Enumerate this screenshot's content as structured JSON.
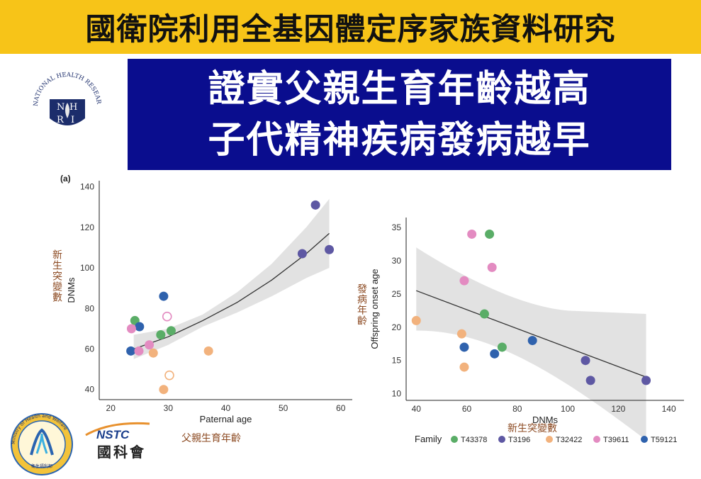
{
  "banner": {
    "title": "國衛院利用全基因體定序家族資料研究"
  },
  "headline": {
    "line1": "證實父親生育年齡越高",
    "line2": "子代精神疾病發病越早"
  },
  "logos": {
    "nhri_text": "NATIONAL HEALTH RESEARCH INSTITUTES",
    "moh_text": "Ministry of Health and Welfare",
    "moh_zh": "衛生福利部",
    "nstc_text": "NSTC",
    "nstc_zh": "國科會"
  },
  "labels": {
    "left_y_zh": "新生突變數",
    "left_x_zh": "父親生育年齡",
    "right_y_zh": "發病年齡",
    "right_x_zh": "新生突變數"
  },
  "colors": {
    "T43378": "#5aad67",
    "T3196": "#5e58a3",
    "T32422": "#f2b27d",
    "T39611": "#e38bc1",
    "T59121": "#2f62ad",
    "banner": "#f7c418",
    "headline_bg": "#0a0d8e"
  },
  "legend": {
    "title": "Family",
    "items": [
      "T43378",
      "T3196",
      "T32422",
      "T39611",
      "T59121"
    ]
  },
  "chart_data": [
    {
      "type": "scatter",
      "panel": "(a)",
      "xlabel": "Paternal age",
      "ylabel": "DNMs",
      "xlim": [
        18,
        62
      ],
      "ylim": [
        35,
        143
      ],
      "xticks": [
        20,
        30,
        40,
        50,
        60
      ],
      "yticks": [
        40,
        60,
        80,
        100,
        120,
        140
      ],
      "points": [
        {
          "x": 23.5,
          "y": 59,
          "family": "T59121"
        },
        {
          "x": 24.2,
          "y": 74,
          "family": "T43378"
        },
        {
          "x": 25.0,
          "y": 71,
          "family": "T59121"
        },
        {
          "x": 23.6,
          "y": 70,
          "family": "T39611"
        },
        {
          "x": 24.9,
          "y": 59,
          "family": "T39611"
        },
        {
          "x": 26.7,
          "y": 62,
          "family": "T39611"
        },
        {
          "x": 27.4,
          "y": 58,
          "family": "T32422"
        },
        {
          "x": 28.7,
          "y": 67,
          "family": "T43378"
        },
        {
          "x": 30.5,
          "y": 69,
          "family": "T43378"
        },
        {
          "x": 29.2,
          "y": 86,
          "family": "T59121"
        },
        {
          "x": 29.8,
          "y": 76,
          "family": "T39611",
          "open": true
        },
        {
          "x": 30.2,
          "y": 47,
          "family": "T32422",
          "open": true
        },
        {
          "x": 29.2,
          "y": 40,
          "family": "T32422"
        },
        {
          "x": 37.0,
          "y": 59,
          "family": "T32422"
        },
        {
          "x": 53.3,
          "y": 107,
          "family": "T3196"
        },
        {
          "x": 55.6,
          "y": 131,
          "family": "T3196"
        },
        {
          "x": 58.0,
          "y": 109,
          "family": "T3196"
        }
      ],
      "fit": {
        "x": [
          24,
          30,
          36,
          42,
          48,
          54,
          58
        ],
        "y": [
          60,
          66,
          74,
          83,
          94,
          107,
          117
        ],
        "ci_low": [
          55,
          62,
          71,
          78,
          86,
          95,
          100
        ],
        "ci_high": [
          67,
          70,
          77,
          88,
          102,
          120,
          134
        ]
      }
    },
    {
      "type": "scatter",
      "xlabel": "DNMs",
      "ylabel": "Offspring onset age",
      "xlim": [
        36,
        146
      ],
      "ylim": [
        9,
        36.5
      ],
      "xticks": [
        40,
        60,
        80,
        100,
        120,
        140
      ],
      "yticks": [
        10,
        15,
        20,
        25,
        30,
        35
      ],
      "points": [
        {
          "x": 40,
          "y": 21,
          "family": "T32422"
        },
        {
          "x": 58,
          "y": 19,
          "family": "T32422"
        },
        {
          "x": 59,
          "y": 14,
          "family": "T32422"
        },
        {
          "x": 59,
          "y": 27,
          "family": "T39611"
        },
        {
          "x": 59,
          "y": 17,
          "family": "T59121"
        },
        {
          "x": 62,
          "y": 34,
          "family": "T39611"
        },
        {
          "x": 67,
          "y": 22,
          "family": "T43378"
        },
        {
          "x": 69,
          "y": 34,
          "family": "T43378"
        },
        {
          "x": 70,
          "y": 29,
          "family": "T39611"
        },
        {
          "x": 71,
          "y": 16,
          "family": "T59121"
        },
        {
          "x": 74,
          "y": 17,
          "family": "T43378"
        },
        {
          "x": 86,
          "y": 18,
          "family": "T59121"
        },
        {
          "x": 107,
          "y": 15,
          "family": "T3196"
        },
        {
          "x": 109,
          "y": 12,
          "family": "T3196"
        },
        {
          "x": 131,
          "y": 12,
          "family": "T3196"
        }
      ],
      "fit": {
        "x": [
          40,
          131
        ],
        "y": [
          25.5,
          12.5
        ],
        "ci_low": [
          19.5,
          3
        ],
        "ci_high": [
          32,
          22
        ]
      }
    }
  ]
}
